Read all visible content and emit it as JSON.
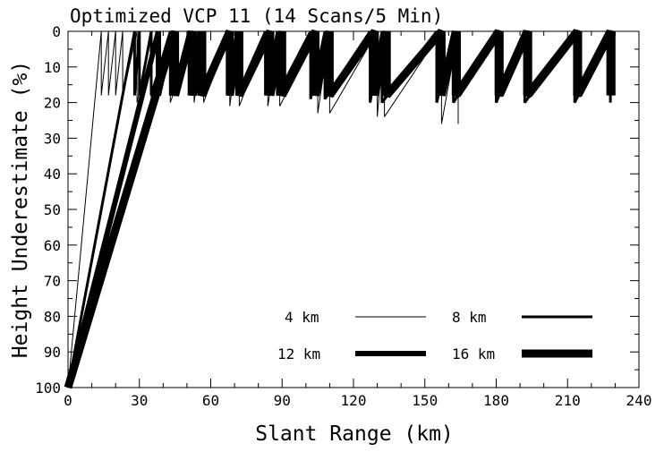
{
  "chart_data": {
    "type": "line",
    "title": "Optimized VCP 11 (14 Scans/5 Min)",
    "xlabel": "Slant Range (km)",
    "ylabel": "Height Underestimate (%)",
    "xlim": [
      0,
      240
    ],
    "ylim": [
      100,
      0
    ],
    "y_axis_inverted": true,
    "xticks": [
      0,
      30,
      60,
      90,
      120,
      150,
      180,
      210,
      240
    ],
    "yticks": [
      0,
      10,
      20,
      30,
      40,
      50,
      60,
      70,
      80,
      90,
      100
    ],
    "grid": false,
    "legend_placement": "bottom-right",
    "line_color": "#000000",
    "series": [
      {
        "name": "4 km",
        "line_weight": "thin",
        "points": [
          [
            0,
            100
          ],
          [
            14,
            0
          ],
          [
            14,
            18
          ],
          [
            17,
            0
          ],
          [
            17,
            18
          ],
          [
            20,
            0
          ],
          [
            20,
            18
          ],
          [
            23,
            0
          ],
          [
            23,
            18
          ],
          [
            29,
            0
          ],
          [
            29,
            20
          ],
          [
            35,
            0
          ],
          [
            35,
            20
          ],
          [
            43,
            0
          ],
          [
            43,
            20
          ],
          [
            53,
            0
          ],
          [
            53,
            20
          ],
          [
            57,
            0
          ],
          [
            57,
            20
          ],
          [
            68,
            0
          ],
          [
            68,
            21
          ],
          [
            72,
            0
          ],
          [
            72,
            21
          ],
          [
            84,
            0
          ],
          [
            84,
            21
          ],
          [
            89,
            0
          ],
          [
            89,
            21
          ],
          [
            105,
            0
          ],
          [
            105,
            23
          ],
          [
            110,
            0
          ],
          [
            110,
            23
          ],
          [
            130,
            0
          ],
          [
            130,
            24
          ],
          [
            133,
            0
          ],
          [
            133,
            24
          ],
          [
            157,
            0
          ],
          [
            157,
            26
          ],
          [
            164,
            0
          ],
          [
            164,
            26
          ]
        ]
      },
      {
        "name": "8 km",
        "line_weight": "medium",
        "points": [
          [
            0,
            100
          ],
          [
            28,
            0
          ],
          [
            28,
            18
          ],
          [
            30,
            0
          ],
          [
            30,
            18
          ],
          [
            35,
            0
          ],
          [
            35,
            18
          ],
          [
            43,
            0
          ],
          [
            43,
            18
          ],
          [
            52,
            0
          ],
          [
            52,
            18
          ],
          [
            56,
            0
          ],
          [
            56,
            18
          ],
          [
            67,
            0
          ],
          [
            67,
            18
          ],
          [
            71,
            0
          ],
          [
            71,
            18
          ],
          [
            83,
            0
          ],
          [
            83,
            18
          ],
          [
            88,
            0
          ],
          [
            88,
            18
          ],
          [
            102,
            0
          ],
          [
            102,
            19
          ],
          [
            108,
            0
          ],
          [
            108,
            19
          ],
          [
            127,
            0
          ],
          [
            127,
            20
          ],
          [
            132,
            0
          ],
          [
            132,
            20
          ],
          [
            155,
            0
          ],
          [
            155,
            20
          ],
          [
            162,
            0
          ],
          [
            162,
            20
          ],
          [
            180,
            0
          ],
          [
            180,
            20
          ],
          [
            192,
            0
          ],
          [
            192,
            20
          ],
          [
            213,
            0
          ],
          [
            213,
            20
          ],
          [
            228,
            0
          ],
          [
            228,
            20
          ]
        ]
      },
      {
        "name": "12 km",
        "line_weight": "thick",
        "points": [
          [
            0,
            100
          ],
          [
            38,
            0
          ],
          [
            38,
            18
          ],
          [
            44,
            0
          ],
          [
            44,
            18
          ],
          [
            53,
            0
          ],
          [
            53,
            18
          ],
          [
            57,
            0
          ],
          [
            57,
            18
          ],
          [
            68,
            0
          ],
          [
            68,
            18
          ],
          [
            72,
            0
          ],
          [
            72,
            18
          ],
          [
            85,
            0
          ],
          [
            85,
            18
          ],
          [
            90,
            0
          ],
          [
            90,
            18
          ],
          [
            104,
            0
          ],
          [
            104,
            18
          ],
          [
            110,
            0
          ],
          [
            110,
            18
          ],
          [
            129,
            0
          ],
          [
            129,
            18
          ],
          [
            134,
            0
          ],
          [
            134,
            18
          ],
          [
            157,
            0
          ],
          [
            157,
            18
          ],
          [
            164,
            0
          ],
          [
            164,
            18
          ],
          [
            182,
            0
          ],
          [
            182,
            18
          ],
          [
            194,
            0
          ],
          [
            194,
            18
          ],
          [
            215,
            0
          ],
          [
            215,
            18
          ],
          [
            229,
            0
          ],
          [
            229,
            18
          ]
        ]
      },
      {
        "name": "16 km",
        "line_weight": "heaviest",
        "points": [
          [
            0,
            100
          ],
          [
            45,
            0
          ],
          [
            45,
            18
          ],
          [
            52,
            0
          ],
          [
            52,
            18
          ],
          [
            56,
            0
          ],
          [
            56,
            18
          ],
          [
            68,
            0
          ],
          [
            68,
            18
          ],
          [
            72,
            0
          ],
          [
            72,
            18
          ],
          [
            85,
            0
          ],
          [
            85,
            18
          ],
          [
            90,
            0
          ],
          [
            90,
            18
          ],
          [
            104,
            0
          ],
          [
            104,
            18
          ],
          [
            110,
            0
          ],
          [
            110,
            18
          ],
          [
            129,
            0
          ],
          [
            129,
            18
          ],
          [
            134,
            0
          ],
          [
            134,
            18
          ],
          [
            157,
            0
          ],
          [
            157,
            18
          ],
          [
            163,
            0
          ],
          [
            163,
            18
          ],
          [
            181,
            0
          ],
          [
            181,
            18
          ],
          [
            193,
            0
          ],
          [
            193,
            18
          ],
          [
            214,
            0
          ],
          [
            214,
            18
          ],
          [
            228,
            0
          ],
          [
            228,
            18
          ]
        ]
      }
    ]
  }
}
